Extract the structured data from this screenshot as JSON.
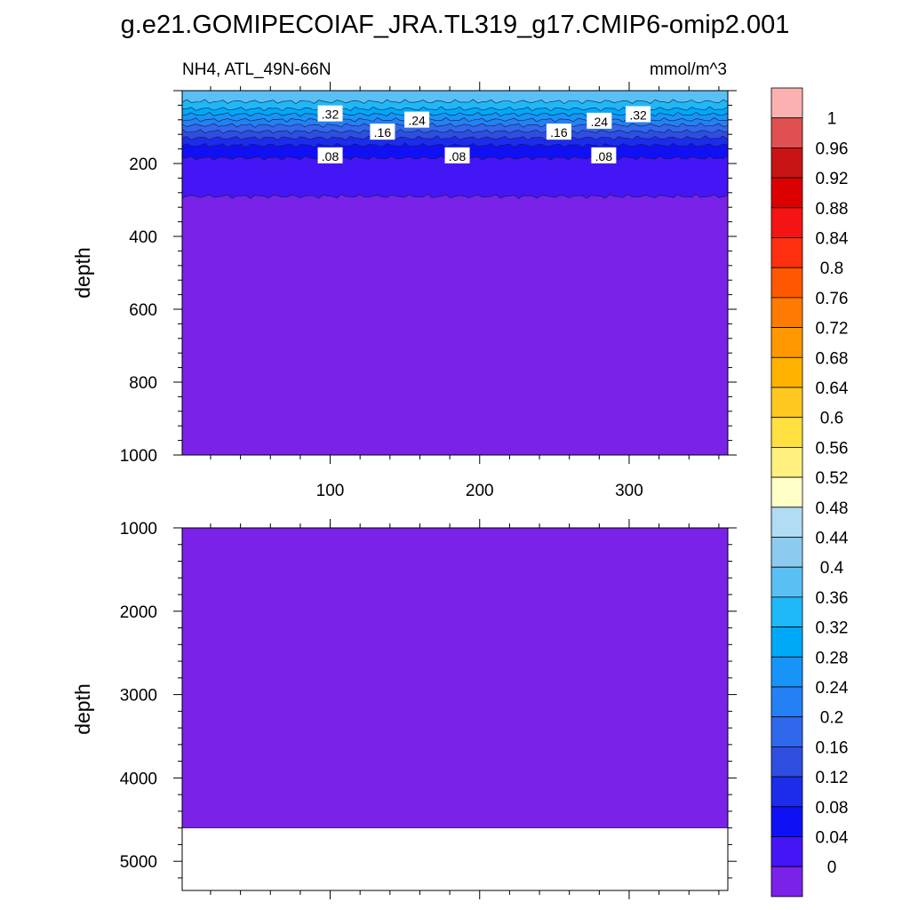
{
  "title": "g.e21.GOMIPECOIAF_JRA.TL319_g17.CMIP6-omip2.001",
  "chart_data": {
    "type": "heatmap",
    "variable_label": "NH4, ATL_49N-66N",
    "units": "mmol/m^3",
    "x_ticks": [
      100,
      200,
      300
    ],
    "xlim": [
      1,
      366
    ],
    "panels": [
      {
        "id": "upper",
        "ylabel": "depth",
        "ylim": [
          0,
          1000
        ],
        "y_ticks": [
          200,
          400,
          600,
          800,
          1000
        ],
        "contour_labels": [
          {
            "text": ".32",
            "x": 100,
            "y": 65
          },
          {
            "text": ".24",
            "x": 158,
            "y": 82
          },
          {
            "text": ".24",
            "x": 280,
            "y": 85
          },
          {
            "text": ".32",
            "x": 306,
            "y": 67
          },
          {
            "text": ".16",
            "x": 135,
            "y": 115
          },
          {
            "text": ".16",
            "x": 253,
            "y": 115
          },
          {
            "text": ".08",
            "x": 100,
            "y": 180
          },
          {
            "text": ".08",
            "x": 185,
            "y": 180
          },
          {
            "text": ".08",
            "x": 283,
            "y": 180
          }
        ],
        "layers": [
          {
            "depth": 30,
            "level": "0.4"
          },
          {
            "depth": 50,
            "level": "0.36"
          },
          {
            "depth": 65,
            "level": "0.32"
          },
          {
            "depth": 80,
            "level": "0.28"
          },
          {
            "depth": 95,
            "level": "0.24"
          },
          {
            "depth": 112,
            "level": "0.2"
          },
          {
            "depth": 130,
            "level": "0.16"
          },
          {
            "depth": 150,
            "level": "0.12"
          },
          {
            "depth": 185,
            "level": "0.08"
          },
          {
            "depth": 290,
            "level": "0.04"
          },
          {
            "depth": 1000,
            "level": "0"
          }
        ]
      },
      {
        "id": "lower",
        "ylabel": "depth",
        "ylim": [
          1000,
          5350
        ],
        "y_ticks": [
          1000,
          2000,
          3000,
          4000,
          5000
        ],
        "layers": [
          {
            "depth": 4600,
            "level": "0"
          }
        ],
        "no_data_below": 4600
      }
    ],
    "colorbar": {
      "labels": [
        "1",
        "0.96",
        "0.92",
        "0.88",
        "0.84",
        "0.8",
        "0.76",
        "0.72",
        "0.68",
        "0.64",
        "0.6",
        "0.56",
        "0.52",
        "0.48",
        "0.44",
        "0.4",
        "0.36",
        "0.32",
        "0.28",
        "0.24",
        "0.2",
        "0.16",
        "0.12",
        "0.08",
        "0.04",
        "0"
      ],
      "colors": [
        "#fcb1b1",
        "#e05050",
        "#c81414",
        "#dc0000",
        "#f41414",
        "#ff3010",
        "#ff5800",
        "#ff7a00",
        "#ff9800",
        "#ffb200",
        "#ffc820",
        "#ffe040",
        "#fff080",
        "#ffffc8",
        "#b0dcf4",
        "#8ccaf0",
        "#5ac0f4",
        "#1eb8f8",
        "#00a8f8",
        "#1894f8",
        "#2480f4",
        "#3068ec",
        "#2e4ee2",
        "#1c2ceb",
        "#1010f5",
        "#4416f5",
        "#7a22e8"
      ]
    }
  }
}
